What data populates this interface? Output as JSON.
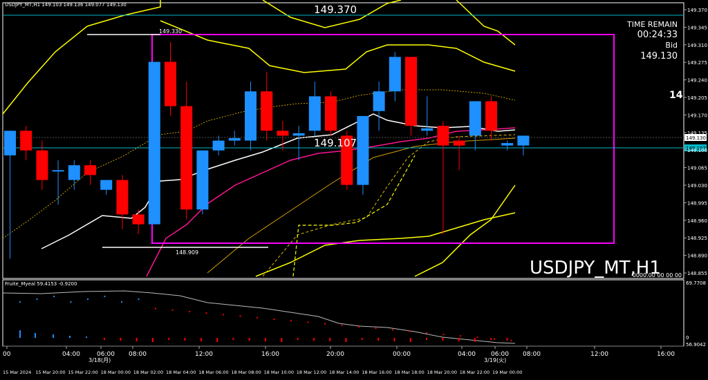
{
  "window": {
    "symbol_line": "USDJPY_MT,H1  149.103 149.136 149.077 149.130",
    "watermark": "USDJPY_MT,H1",
    "right_edge_glyph": "14"
  },
  "info_panel": {
    "time_remain_label": "TIME REMAIN",
    "time_remain_value": "00:24:33",
    "bid_label": "Bid",
    "bid_value": "149.130"
  },
  "annotations": {
    "level_top": "149.370",
    "level_mid": "149.107",
    "high_label": "149.330",
    "low_label": "148.909"
  },
  "indicator": {
    "name": "Fruite_Myeal 59.4153 -0.9200",
    "readout": "0000.00 00 00 00",
    "scale_top": "69.7708",
    "scale_zero": "0",
    "scale_bottom": "56.9042"
  },
  "price_axis": {
    "labels": [
      "149.370",
      "149.345",
      "149.310",
      "149.275",
      "149.240",
      "149.205",
      "149.170",
      "149.135",
      "149.100",
      "149.065",
      "149.030",
      "148.995",
      "148.960",
      "148.925",
      "148.890",
      "148.855"
    ],
    "bid_tag": "149.130",
    "line_tag": "149.107"
  },
  "time_axis": {
    "top_labels": [
      "00",
      "04:00",
      "06:00",
      "08:00",
      "12:00",
      "16:00",
      "20:00",
      "00:00",
      "04:00",
      "06:00",
      "08:00",
      "12:00",
      "16:00"
    ],
    "date_labels": [
      "3/18(月)",
      "3/19(火)"
    ],
    "bottom_labels": [
      "15 Mar 2024",
      "15 Mar 20:00",
      "15 Mar 22:00",
      "18 Mar 00:00",
      "18 Mar 02:00",
      "18 Mar 04:00",
      "18 Mar 06:00",
      "18 Mar 08:00",
      "18 Mar 10:00",
      "18 Mar 12:00",
      "18 Mar 14:00",
      "18 Mar 16:00",
      "18 Mar 18:00",
      "18 Mar 20:00",
      "18 Mar 22:00",
      "19 Mar 00:00"
    ]
  },
  "colors": {
    "bull": "#1e90ff",
    "bear": "#ff0000",
    "band": "#ffff00",
    "mid_line": "#ffffff",
    "ma_pink": "#ff1493",
    "box": "#ff00ff",
    "hline": "#00b8c8"
  },
  "chart_data": {
    "type": "candlestick",
    "ylim": [
      148.84,
      149.4
    ],
    "candles": [
      {
        "o": 149.09,
        "h": 149.14,
        "l": 148.88,
        "c": 149.14
      },
      {
        "o": 149.14,
        "h": 149.15,
        "l": 149.08,
        "c": 149.1
      },
      {
        "o": 149.1,
        "h": 149.12,
        "l": 149.02,
        "c": 149.04
      },
      {
        "o": 149.06,
        "h": 149.08,
        "l": 148.99,
        "c": 149.06
      },
      {
        "o": 149.04,
        "h": 149.08,
        "l": 149.02,
        "c": 149.07
      },
      {
        "o": 149.07,
        "h": 149.08,
        "l": 149.03,
        "c": 149.05
      },
      {
        "o": 149.02,
        "h": 149.04,
        "l": 149.01,
        "c": 149.04
      },
      {
        "o": 149.04,
        "h": 149.05,
        "l": 148.94,
        "c": 148.97
      },
      {
        "o": 148.97,
        "h": 148.98,
        "l": 148.93,
        "c": 148.95
      },
      {
        "o": 148.95,
        "h": 149.28,
        "l": 148.95,
        "c": 149.28
      },
      {
        "o": 149.28,
        "h": 149.32,
        "l": 149.17,
        "c": 149.19
      },
      {
        "o": 149.19,
        "h": 149.24,
        "l": 148.96,
        "c": 148.98
      },
      {
        "o": 148.98,
        "h": 149.1,
        "l": 148.97,
        "c": 149.1
      },
      {
        "o": 149.1,
        "h": 149.13,
        "l": 149.09,
        "c": 149.12
      },
      {
        "o": 149.12,
        "h": 149.14,
        "l": 149.11,
        "c": 149.125
      },
      {
        "o": 149.12,
        "h": 149.24,
        "l": 149.1,
        "c": 149.22
      },
      {
        "o": 149.22,
        "h": 149.26,
        "l": 149.12,
        "c": 149.14
      },
      {
        "o": 149.14,
        "h": 149.16,
        "l": 149.1,
        "c": 149.13
      },
      {
        "o": 149.13,
        "h": 149.15,
        "l": 149.08,
        "c": 149.135
      },
      {
        "o": 149.14,
        "h": 149.24,
        "l": 149.13,
        "c": 149.21
      },
      {
        "o": 149.21,
        "h": 149.22,
        "l": 149.13,
        "c": 149.14
      },
      {
        "o": 149.13,
        "h": 149.14,
        "l": 149.02,
        "c": 149.03
      },
      {
        "o": 149.03,
        "h": 149.17,
        "l": 149.01,
        "c": 149.17
      },
      {
        "o": 149.18,
        "h": 149.24,
        "l": 149.14,
        "c": 149.22
      },
      {
        "o": 149.22,
        "h": 149.3,
        "l": 149.2,
        "c": 149.29
      },
      {
        "o": 149.29,
        "h": 149.29,
        "l": 149.13,
        "c": 149.15
      },
      {
        "o": 149.14,
        "h": 149.21,
        "l": 149.13,
        "c": 149.145
      },
      {
        "o": 149.15,
        "h": 149.16,
        "l": 148.93,
        "c": 149.11
      },
      {
        "o": 149.12,
        "h": 149.13,
        "l": 149.06,
        "c": 149.11
      },
      {
        "o": 149.13,
        "h": 149.2,
        "l": 149.1,
        "c": 149.2
      },
      {
        "o": 149.2,
        "h": 149.21,
        "l": 149.12,
        "c": 149.14
      },
      {
        "o": 149.11,
        "h": 149.12,
        "l": 149.1,
        "c": 149.115
      },
      {
        "o": 149.11,
        "h": 149.13,
        "l": 149.09,
        "c": 149.13
      }
    ]
  }
}
